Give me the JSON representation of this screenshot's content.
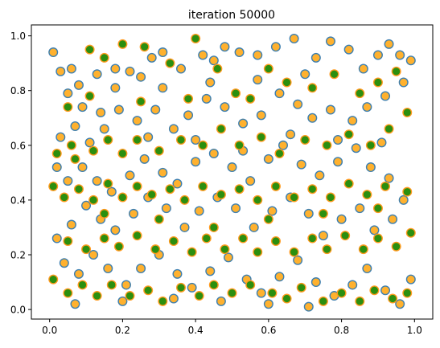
{
  "chart_data": {
    "type": "scatter",
    "title": "iteration 50000",
    "xlabel": "",
    "ylabel": "",
    "xlim": [
      -0.05,
      1.05
    ],
    "ylim": [
      -0.035,
      1.04
    ],
    "x_ticks": [
      0.0,
      0.2,
      0.4,
      0.6,
      0.8,
      1.0
    ],
    "x_tick_labels": [
      "0.0",
      "0.2",
      "0.4",
      "0.6",
      "0.8",
      "1.0"
    ],
    "y_ticks": [
      0.0,
      0.2,
      0.4,
      0.6,
      0.8,
      1.0
    ],
    "y_tick_labels": [
      "0.0",
      "0.2",
      "0.4",
      "0.6",
      "0.8",
      "1.0"
    ],
    "grid": false,
    "series": [
      {
        "style": {
          "fill": "#ffb12e",
          "edge": "#3d7fb0"
        },
        "points": [
          [
            0.01,
            0.94
          ],
          [
            0.03,
            0.87
          ],
          [
            0.06,
            0.88
          ],
          [
            0.05,
            0.79
          ],
          [
            0.09,
            0.74
          ],
          [
            0.13,
            0.86
          ],
          [
            0.18,
            0.88
          ],
          [
            0.22,
            0.87
          ],
          [
            0.25,
            0.85
          ],
          [
            0.28,
            0.92
          ],
          [
            0.31,
            0.94
          ],
          [
            0.36,
            0.88
          ],
          [
            0.42,
            0.93
          ],
          [
            0.45,
            0.91
          ],
          [
            0.48,
            0.96
          ],
          [
            0.52,
            0.94
          ],
          [
            0.57,
            0.93
          ],
          [
            0.62,
            0.96
          ],
          [
            0.67,
            0.99
          ],
          [
            0.73,
            0.92
          ],
          [
            0.77,
            0.98
          ],
          [
            0.82,
            0.95
          ],
          [
            0.86,
            0.88
          ],
          [
            0.9,
            0.93
          ],
          [
            0.93,
            0.97
          ],
          [
            0.96,
            0.93
          ],
          [
            0.99,
            0.91
          ],
          [
            0.97,
            0.83
          ],
          [
            0.92,
            0.78
          ],
          [
            0.87,
            0.74
          ],
          [
            0.83,
            0.69
          ],
          [
            0.77,
            0.73
          ],
          [
            0.72,
            0.7
          ],
          [
            0.68,
            0.75
          ],
          [
            0.63,
            0.79
          ],
          [
            0.58,
            0.71
          ],
          [
            0.53,
            0.68
          ],
          [
            0.48,
            0.74
          ],
          [
            0.43,
            0.77
          ],
          [
            0.38,
            0.71
          ],
          [
            0.34,
            0.66
          ],
          [
            0.29,
            0.73
          ],
          [
            0.24,
            0.69
          ],
          [
            0.19,
            0.73
          ],
          [
            0.15,
            0.66
          ],
          [
            0.11,
            0.61
          ],
          [
            0.07,
            0.67
          ],
          [
            0.03,
            0.63
          ],
          [
            0.02,
            0.52
          ],
          [
            0.05,
            0.47
          ],
          [
            0.09,
            0.52
          ],
          [
            0.13,
            0.47
          ],
          [
            0.17,
            0.43
          ],
          [
            0.22,
            0.49
          ],
          [
            0.26,
            0.55
          ],
          [
            0.31,
            0.5
          ],
          [
            0.35,
            0.46
          ],
          [
            0.4,
            0.54
          ],
          [
            0.45,
            0.57
          ],
          [
            0.5,
            0.52
          ],
          [
            0.55,
            0.47
          ],
          [
            0.6,
            0.55
          ],
          [
            0.64,
            0.6
          ],
          [
            0.69,
            0.53
          ],
          [
            0.74,
            0.49
          ],
          [
            0.79,
            0.54
          ],
          [
            0.84,
            0.59
          ],
          [
            0.88,
            0.52
          ],
          [
            0.93,
            0.48
          ],
          [
            0.97,
            0.4
          ],
          [
            0.94,
            0.33
          ],
          [
            0.89,
            0.29
          ],
          [
            0.85,
            0.37
          ],
          [
            0.8,
            0.33
          ],
          [
            0.75,
            0.27
          ],
          [
            0.71,
            0.35
          ],
          [
            0.66,
            0.41
          ],
          [
            0.61,
            0.36
          ],
          [
            0.56,
            0.3
          ],
          [
            0.51,
            0.37
          ],
          [
            0.46,
            0.41
          ],
          [
            0.41,
            0.36
          ],
          [
            0.37,
            0.3
          ],
          [
            0.32,
            0.37
          ],
          [
            0.27,
            0.41
          ],
          [
            0.23,
            0.35
          ],
          [
            0.18,
            0.29
          ],
          [
            0.14,
            0.33
          ],
          [
            0.1,
            0.38
          ],
          [
            0.06,
            0.31
          ],
          [
            0.02,
            0.26
          ],
          [
            0.04,
            0.17
          ],
          [
            0.08,
            0.13
          ],
          [
            0.12,
            0.2
          ],
          [
            0.16,
            0.15
          ],
          [
            0.21,
            0.09
          ],
          [
            0.25,
            0.15
          ],
          [
            0.3,
            0.2
          ],
          [
            0.35,
            0.13
          ],
          [
            0.39,
            0.08
          ],
          [
            0.44,
            0.14
          ],
          [
            0.49,
            0.19
          ],
          [
            0.54,
            0.11
          ],
          [
            0.58,
            0.06
          ],
          [
            0.63,
            0.12
          ],
          [
            0.68,
            0.18
          ],
          [
            0.73,
            0.1
          ],
          [
            0.78,
            0.05
          ],
          [
            0.83,
            0.09
          ],
          [
            0.87,
            0.15
          ],
          [
            0.92,
            0.07
          ],
          [
            0.96,
            0.02
          ],
          [
            0.99,
            0.11
          ],
          [
            0.71,
            0.01
          ],
          [
            0.6,
            0.02
          ],
          [
            0.47,
            0.03
          ],
          [
            0.34,
            0.04
          ],
          [
            0.2,
            0.03
          ],
          [
            0.07,
            0.02
          ],
          [
            0.14,
            0.72
          ],
          [
            0.27,
            0.63
          ],
          [
            0.4,
            0.62
          ],
          [
            0.53,
            0.58
          ],
          [
            0.66,
            0.64
          ],
          [
            0.79,
            0.62
          ],
          [
            0.91,
            0.61
          ],
          [
            0.57,
            0.84
          ],
          [
            0.7,
            0.86
          ],
          [
            0.44,
            0.83
          ],
          [
            0.31,
            0.81
          ],
          [
            0.18,
            0.81
          ],
          [
            0.08,
            0.82
          ]
        ]
      },
      {
        "style": {
          "fill": "#2b8f0f",
          "edge": "#ff9a1e"
        },
        "points": [
          [
            0.02,
            0.57
          ],
          [
            0.07,
            0.55
          ],
          [
            0.11,
            0.95
          ],
          [
            0.15,
            0.92
          ],
          [
            0.2,
            0.97
          ],
          [
            0.33,
            0.9
          ],
          [
            0.4,
            0.99
          ],
          [
            0.55,
            0.77
          ],
          [
            0.6,
            0.88
          ],
          [
            0.65,
            0.83
          ],
          [
            0.72,
            0.81
          ],
          [
            0.78,
            0.86
          ],
          [
            0.85,
            0.79
          ],
          [
            0.9,
            0.83
          ],
          [
            0.95,
            0.87
          ],
          [
            0.98,
            0.72
          ],
          [
            0.93,
            0.66
          ],
          [
            0.88,
            0.6
          ],
          [
            0.82,
            0.64
          ],
          [
            0.76,
            0.6
          ],
          [
            0.7,
            0.62
          ],
          [
            0.63,
            0.57
          ],
          [
            0.58,
            0.63
          ],
          [
            0.52,
            0.6
          ],
          [
            0.47,
            0.66
          ],
          [
            0.42,
            0.6
          ],
          [
            0.36,
            0.62
          ],
          [
            0.3,
            0.58
          ],
          [
            0.24,
            0.62
          ],
          [
            0.2,
            0.57
          ],
          [
            0.16,
            0.62
          ],
          [
            0.12,
            0.58
          ],
          [
            0.06,
            0.6
          ],
          [
            0.01,
            0.45
          ],
          [
            0.04,
            0.41
          ],
          [
            0.08,
            0.44
          ],
          [
            0.12,
            0.4
          ],
          [
            0.16,
            0.46
          ],
          [
            0.2,
            0.41
          ],
          [
            0.24,
            0.45
          ],
          [
            0.28,
            0.42
          ],
          [
            0.33,
            0.44
          ],
          [
            0.37,
            0.4
          ],
          [
            0.42,
            0.45
          ],
          [
            0.47,
            0.42
          ],
          [
            0.52,
            0.44
          ],
          [
            0.57,
            0.4
          ],
          [
            0.62,
            0.45
          ],
          [
            0.67,
            0.41
          ],
          [
            0.72,
            0.44
          ],
          [
            0.77,
            0.41
          ],
          [
            0.82,
            0.46
          ],
          [
            0.87,
            0.42
          ],
          [
            0.92,
            0.45
          ],
          [
            0.98,
            0.43
          ],
          [
            0.99,
            0.28
          ],
          [
            0.95,
            0.23
          ],
          [
            0.9,
            0.26
          ],
          [
            0.86,
            0.22
          ],
          [
            0.81,
            0.27
          ],
          [
            0.76,
            0.22
          ],
          [
            0.72,
            0.26
          ],
          [
            0.67,
            0.21
          ],
          [
            0.62,
            0.25
          ],
          [
            0.57,
            0.21
          ],
          [
            0.53,
            0.26
          ],
          [
            0.48,
            0.22
          ],
          [
            0.43,
            0.26
          ],
          [
            0.39,
            0.21
          ],
          [
            0.34,
            0.25
          ],
          [
            0.29,
            0.22
          ],
          [
            0.24,
            0.27
          ],
          [
            0.19,
            0.23
          ],
          [
            0.15,
            0.26
          ],
          [
            0.1,
            0.22
          ],
          [
            0.05,
            0.25
          ],
          [
            0.01,
            0.11
          ],
          [
            0.05,
            0.06
          ],
          [
            0.09,
            0.09
          ],
          [
            0.13,
            0.05
          ],
          [
            0.17,
            0.09
          ],
          [
            0.22,
            0.05
          ],
          [
            0.27,
            0.07
          ],
          [
            0.31,
            0.03
          ],
          [
            0.36,
            0.08
          ],
          [
            0.41,
            0.05
          ],
          [
            0.45,
            0.09
          ],
          [
            0.5,
            0.06
          ],
          [
            0.55,
            0.09
          ],
          [
            0.61,
            0.06
          ],
          [
            0.65,
            0.04
          ],
          [
            0.69,
            0.08
          ],
          [
            0.75,
            0.03
          ],
          [
            0.8,
            0.06
          ],
          [
            0.85,
            0.03
          ],
          [
            0.89,
            0.07
          ],
          [
            0.94,
            0.04
          ],
          [
            0.98,
            0.06
          ],
          [
            0.26,
            0.96
          ],
          [
            0.46,
            0.88
          ],
          [
            0.51,
            0.79
          ],
          [
            0.38,
            0.77
          ],
          [
            0.25,
            0.76
          ],
          [
            0.11,
            0.78
          ],
          [
            0.05,
            0.74
          ],
          [
            0.45,
            0.3
          ],
          [
            0.6,
            0.33
          ],
          [
            0.75,
            0.35
          ],
          [
            0.9,
            0.37
          ],
          [
            0.3,
            0.33
          ],
          [
            0.15,
            0.35
          ]
        ]
      }
    ]
  }
}
